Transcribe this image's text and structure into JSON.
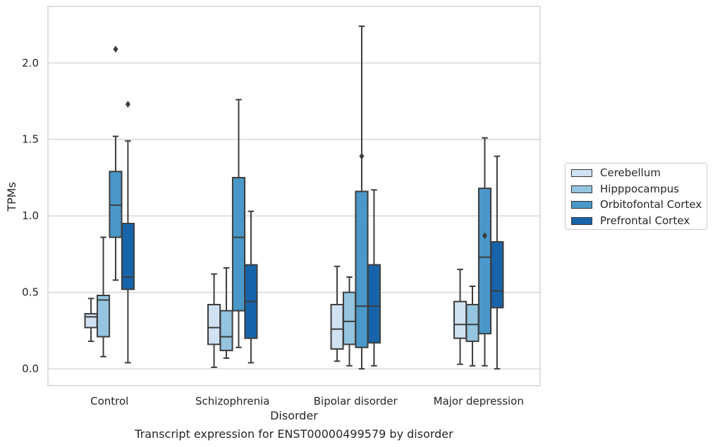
{
  "chart_data": {
    "type": "box",
    "xlabel": "Disorder",
    "ylabel": "TPMs",
    "caption": "Transcript expression for ENST00000499579 by disorder",
    "categories": [
      "Control",
      "Schizophrenia",
      "Bipolar disorder",
      "Major depression"
    ],
    "ylim": [
      -0.11,
      2.37
    ],
    "yticks": [
      "0.0",
      "0.5",
      "1.0",
      "1.5",
      "2.0"
    ],
    "grid": "horizontal",
    "legend_position": "right",
    "series": [
      {
        "name": "Cerebellum",
        "color": "#d0e1f2",
        "boxes": [
          {
            "whisker_low": 0.18,
            "q1": 0.27,
            "median": 0.34,
            "q3": 0.36,
            "whisker_high": 0.46,
            "outliers": []
          },
          {
            "whisker_low": 0.01,
            "q1": 0.16,
            "median": 0.27,
            "q3": 0.42,
            "whisker_high": 0.62,
            "outliers": []
          },
          {
            "whisker_low": 0.05,
            "q1": 0.13,
            "median": 0.26,
            "q3": 0.42,
            "whisker_high": 0.67,
            "outliers": []
          },
          {
            "whisker_low": 0.03,
            "q1": 0.2,
            "median": 0.29,
            "q3": 0.44,
            "whisker_high": 0.65,
            "outliers": []
          }
        ]
      },
      {
        "name": "Hipppocampus",
        "color": "#94c4df",
        "boxes": [
          {
            "whisker_low": 0.08,
            "q1": 0.21,
            "median": 0.45,
            "q3": 0.48,
            "whisker_high": 0.86,
            "outliers": []
          },
          {
            "whisker_low": 0.07,
            "q1": 0.12,
            "median": 0.21,
            "q3": 0.38,
            "whisker_high": 0.66,
            "outliers": []
          },
          {
            "whisker_low": 0.02,
            "q1": 0.16,
            "median": 0.31,
            "q3": 0.5,
            "whisker_high": 0.6,
            "outliers": []
          },
          {
            "whisker_low": 0.02,
            "q1": 0.18,
            "median": 0.29,
            "q3": 0.42,
            "whisker_high": 0.54,
            "outliers": []
          }
        ]
      },
      {
        "name": "Orbitofontal Cortex",
        "color": "#4a98c9",
        "boxes": [
          {
            "whisker_low": 0.58,
            "q1": 0.86,
            "median": 1.07,
            "q3": 1.29,
            "whisker_high": 1.52,
            "outliers": [
              2.09
            ]
          },
          {
            "whisker_low": 0.14,
            "q1": 0.38,
            "median": 0.86,
            "q3": 1.25,
            "whisker_high": 1.76,
            "outliers": []
          },
          {
            "whisker_low": 0.0,
            "q1": 0.14,
            "median": 0.41,
            "q3": 1.16,
            "whisker_high": 2.24,
            "outliers": [
              1.39
            ]
          },
          {
            "whisker_low": 0.02,
            "q1": 0.23,
            "median": 0.73,
            "q3": 1.18,
            "whisker_high": 1.51,
            "outliers": [
              0.87
            ]
          }
        ]
      },
      {
        "name": "Prefrontal Cortex",
        "color": "#1764ab",
        "boxes": [
          {
            "whisker_low": 0.04,
            "q1": 0.52,
            "median": 0.6,
            "q3": 0.95,
            "whisker_high": 1.49,
            "outliers": [
              1.73
            ]
          },
          {
            "whisker_low": 0.04,
            "q1": 0.2,
            "median": 0.44,
            "q3": 0.68,
            "whisker_high": 1.03,
            "outliers": []
          },
          {
            "whisker_low": 0.02,
            "q1": 0.17,
            "median": 0.41,
            "q3": 0.68,
            "whisker_high": 1.17,
            "outliers": []
          },
          {
            "whisker_low": 0.0,
            "q1": 0.4,
            "median": 0.51,
            "q3": 0.83,
            "whisker_high": 1.39,
            "outliers": []
          }
        ]
      }
    ]
  }
}
